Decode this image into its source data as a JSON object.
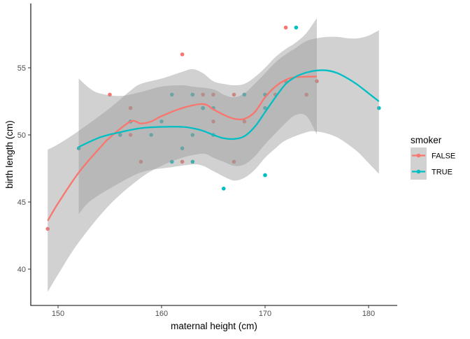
{
  "chart_data": {
    "type": "scatter",
    "title": "",
    "xlabel": "maternal height (cm)",
    "ylabel": "birth length (cm)",
    "xlim": [
      147.4,
      182.6
    ],
    "ylim": [
      37.3,
      59.8
    ],
    "xticks": [
      150,
      160,
      170,
      180
    ],
    "yticks": [
      40,
      45,
      50,
      55
    ],
    "grid": false,
    "legend": {
      "title": "smoker",
      "placement": "right",
      "entries": [
        "FALSE",
        "TRUE"
      ]
    },
    "colors": {
      "FALSE": "#F8766D",
      "TRUE": "#00BFC4",
      "ribbon": "#999999",
      "axis": "#000000"
    },
    "series": [
      {
        "name": "FALSE",
        "points": [
          [
            149,
            43
          ],
          [
            155,
            53
          ],
          [
            157,
            52
          ],
          [
            157,
            50
          ],
          [
            158,
            48
          ],
          [
            162,
            56
          ],
          [
            162,
            48
          ],
          [
            164,
            53
          ],
          [
            164,
            52
          ],
          [
            165,
            53
          ],
          [
            165,
            51
          ],
          [
            167,
            53
          ],
          [
            167,
            48
          ],
          [
            168,
            51
          ],
          [
            171,
            53
          ],
          [
            172,
            58
          ],
          [
            172,
            54
          ],
          [
            174,
            53
          ],
          [
            175,
            54
          ]
        ],
        "smooth": [
          [
            149,
            43.6
          ],
          [
            150,
            44.9
          ],
          [
            152,
            47.2
          ],
          [
            154,
            49.0
          ],
          [
            155,
            49.8
          ],
          [
            157,
            51.0
          ],
          [
            158,
            50.85
          ],
          [
            159,
            51.0
          ],
          [
            160,
            51.4
          ],
          [
            162,
            52.0
          ],
          [
            164,
            52.3
          ],
          [
            165,
            51.9
          ],
          [
            166,
            51.5
          ],
          [
            167,
            51.2
          ],
          [
            168,
            51.2
          ],
          [
            169,
            51.7
          ],
          [
            170,
            52.8
          ],
          [
            171,
            53.6
          ],
          [
            172,
            54.1
          ],
          [
            173,
            54.3
          ],
          [
            175,
            54.35
          ]
        ],
        "lower": [
          [
            149,
            38.3
          ],
          [
            150,
            39.6
          ],
          [
            152,
            42.0
          ],
          [
            155,
            44.8
          ],
          [
            158,
            46.8
          ],
          [
            160,
            47.7
          ],
          [
            162,
            48.3
          ],
          [
            164,
            48.6
          ],
          [
            165,
            48.3
          ],
          [
            166,
            48.0
          ],
          [
            167,
            47.7
          ],
          [
            168,
            47.8
          ],
          [
            169,
            48.4
          ],
          [
            170,
            49.3
          ],
          [
            172,
            50.9
          ],
          [
            173,
            51.5
          ],
          [
            174,
            51.4
          ],
          [
            175,
            50.05
          ]
        ],
        "upper": [
          [
            149,
            48.9
          ],
          [
            150,
            49.3
          ],
          [
            152,
            50.3
          ],
          [
            155,
            52.0
          ],
          [
            157,
            53.3
          ],
          [
            158,
            53.8
          ],
          [
            160,
            54.2
          ],
          [
            162,
            54.7
          ],
          [
            163,
            54.9
          ],
          [
            164,
            54.6
          ],
          [
            165,
            54.0
          ],
          [
            166,
            53.8
          ],
          [
            167,
            53.7
          ],
          [
            168,
            53.8
          ],
          [
            169,
            54.3
          ],
          [
            170,
            55.0
          ],
          [
            171,
            55.8
          ],
          [
            172,
            56.4
          ],
          [
            173,
            56.9
          ],
          [
            174,
            57.6
          ],
          [
            175,
            58.7
          ]
        ]
      },
      {
        "name": "TRUE",
        "points": [
          [
            152,
            49
          ],
          [
            156,
            50
          ],
          [
            157,
            51
          ],
          [
            159,
            50
          ],
          [
            160,
            51
          ],
          [
            161,
            53
          ],
          [
            161,
            48
          ],
          [
            162,
            49
          ],
          [
            163,
            53
          ],
          [
            163,
            50
          ],
          [
            163,
            48
          ],
          [
            164,
            52
          ],
          [
            165,
            52
          ],
          [
            165,
            50
          ],
          [
            166,
            46
          ],
          [
            168,
            53
          ],
          [
            170,
            53
          ],
          [
            170,
            52
          ],
          [
            170,
            47
          ],
          [
            173,
            58
          ],
          [
            181,
            52
          ]
        ],
        "smooth": [
          [
            152,
            49.1
          ],
          [
            154,
            49.8
          ],
          [
            156,
            50.2
          ],
          [
            158,
            50.5
          ],
          [
            160,
            50.6
          ],
          [
            162,
            50.6
          ],
          [
            163,
            50.5
          ],
          [
            164,
            50.3
          ],
          [
            165,
            50.0
          ],
          [
            166,
            49.75
          ],
          [
            167,
            49.7
          ],
          [
            168,
            49.9
          ],
          [
            169,
            50.6
          ],
          [
            170,
            51.7
          ],
          [
            171,
            52.8
          ],
          [
            172,
            53.8
          ],
          [
            173,
            54.35
          ],
          [
            174,
            54.65
          ],
          [
            175,
            54.8
          ],
          [
            176,
            54.8
          ],
          [
            177,
            54.6
          ],
          [
            178,
            54.2
          ],
          [
            179,
            53.7
          ],
          [
            180,
            53.1
          ],
          [
            181,
            52.5
          ]
        ],
        "lower": [
          [
            152,
            44.1
          ],
          [
            153,
            45.0
          ],
          [
            155,
            46.0
          ],
          [
            158,
            47.2
          ],
          [
            161,
            47.6
          ],
          [
            163,
            47.8
          ],
          [
            164,
            47.7
          ],
          [
            165,
            47.3
          ],
          [
            166,
            46.9
          ],
          [
            167,
            46.6
          ],
          [
            168,
            46.8
          ],
          [
            169,
            47.4
          ],
          [
            170,
            48.3
          ],
          [
            171,
            49.0
          ],
          [
            172,
            49.6
          ],
          [
            174,
            50.2
          ],
          [
            175,
            50.25
          ],
          [
            176,
            50.1
          ],
          [
            177,
            49.8
          ],
          [
            178,
            49.3
          ],
          [
            179,
            48.7
          ],
          [
            180,
            47.9
          ],
          [
            181,
            47.1
          ]
        ],
        "upper": [
          [
            152,
            54.2
          ],
          [
            153,
            53.5
          ],
          [
            154,
            53.1
          ],
          [
            156,
            52.9
          ],
          [
            158,
            53.2
          ],
          [
            160,
            53.6
          ],
          [
            162,
            53.7
          ],
          [
            163,
            53.6
          ],
          [
            165,
            53.4
          ],
          [
            166,
            53.0
          ],
          [
            167,
            52.8
          ],
          [
            168,
            53.1
          ],
          [
            169,
            53.8
          ],
          [
            170,
            54.6
          ],
          [
            171,
            55.4
          ],
          [
            172,
            56.0
          ],
          [
            173,
            56.5
          ],
          [
            174,
            57.0
          ],
          [
            175,
            57.2
          ],
          [
            176,
            57.3
          ],
          [
            177,
            57.3
          ],
          [
            178,
            57.2
          ],
          [
            179,
            57.2
          ],
          [
            180,
            57.4
          ],
          [
            181,
            57.8
          ]
        ]
      }
    ]
  }
}
